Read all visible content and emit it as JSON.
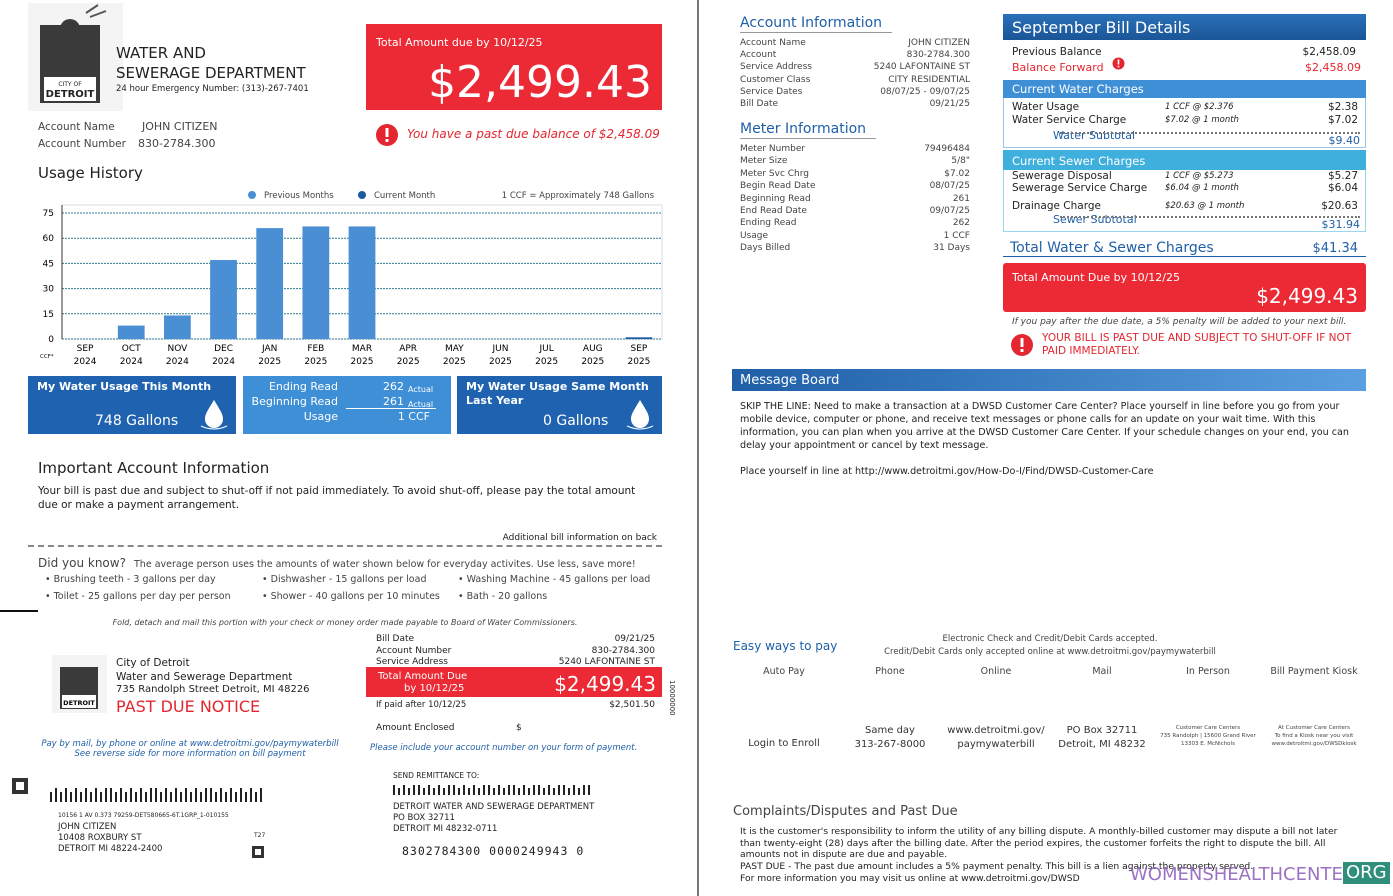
{
  "header": {
    "logo": [
      "CITY OF",
      "DETROIT"
    ],
    "dept_line1": "WATER AND",
    "dept_line2": "SEWERAGE DEPARTMENT",
    "emergency": "24 hour Emergency Number: (313)-267-7401",
    "account_name_label": "Account Name",
    "account_name": "JOHN CITIZEN",
    "account_number_label": "Account Number",
    "account_number": "830-2784.300"
  },
  "total_box": {
    "label": "Total Amount due by 10/12/25",
    "amount": "$2,499.43",
    "past_due": "You have a past due balance of $2,458.09"
  },
  "usage_history": {
    "type": "bar",
    "title": "Usage History",
    "legend": [
      "Previous Months",
      "Current Month"
    ],
    "colors": [
      "#4a8fd4",
      "#1e5aa0"
    ],
    "note": "1 CCF = Approximately 748 Gallons",
    "unit": "CCF*",
    "months": [
      "SEP",
      "OCT",
      "NOV",
      "DEC",
      "JAN",
      "FEB",
      "MAR",
      "APR",
      "MAY",
      "JUN",
      "JUL",
      "AUG",
      "SEP"
    ],
    "years": [
      "2024",
      "2024",
      "2024",
      "2024",
      "2025",
      "2025",
      "2025",
      "2025",
      "2025",
      "2025",
      "2025",
      "2025",
      "2025"
    ],
    "values": [
      0,
      8,
      14,
      47,
      66,
      67,
      67,
      0,
      0,
      0,
      0,
      0,
      1
    ],
    "ylim": [
      0,
      75
    ],
    "yticks": [
      0,
      15,
      30,
      45,
      60,
      75
    ],
    "grid": true
  },
  "usage_tiles": {
    "this_month_title": "My Water Usage This Month",
    "this_month_value": "748 Gallons",
    "reads": [
      [
        "Ending Read",
        "262",
        "Actual"
      ],
      [
        "Beginning Read",
        "261",
        "Actual"
      ],
      [
        "Usage",
        "1 CCF"
      ]
    ],
    "last_year_title": [
      "My Water Usage Same Month",
      "Last Year"
    ],
    "last_year_value": "0 Gallons"
  },
  "important": {
    "title": "Important Account Information",
    "text": "Your bill is past due and subject to shut-off if not paid immediately.  To avoid shut-off, please pay the total amount due or make a payment arrangement.",
    "additional": "Additional bill information on back"
  },
  "did_you_know": {
    "title": "Did you know?",
    "intro": "The average person uses the amounts of water shown below for everyday activites.  Use less, save more!",
    "tips": [
      "Brushing teeth - 3 gallons per day",
      "Dishwasher - 15 gallons per load",
      "Washing Machine - 45 gallons per load",
      "Toilet - 25 gallons per day per person",
      "Shower - 40 gallons per 10 minutes",
      "Bath - 20 gallons"
    ]
  },
  "fold_note": "Fold, detach and mail this portion with your check or money order made payable to Board of Water Commissioners.",
  "stub": {
    "city_lines": [
      "City of Detroit",
      "Water and Sewerage Department",
      "735 Randolph Street Detroit, MI 48226"
    ],
    "notice": "PAST DUE NOTICE",
    "rows": [
      [
        "Bill Date",
        "09/21/25"
      ],
      [
        "Account Number",
        "830-2784.300"
      ],
      [
        "Service Address",
        "5240 LAFONTAINE ST"
      ]
    ],
    "due_label": [
      "Total Amount Due",
      "by 10/12/25"
    ],
    "due_amount": "$2,499.43",
    "after": [
      "If paid after 10/12/25",
      "$2,501.50"
    ],
    "enclosed": [
      "Amount Enclosed",
      "$"
    ],
    "pay_note": [
      "Pay by mail, by phone or online at www.detroitmi.gov/paymywaterbill",
      "See reverse side for more information on bill payment"
    ],
    "include_note": "Please include your account number on your form of payment.",
    "mail_code": "10156 1 AV 0.373   79259-DET580665-6T.1GRP_1-010155",
    "mail_lines": [
      "JOHN CITIZEN",
      "10408 ROXBURY ST",
      "DETROIT  MI  48224-2400"
    ],
    "tray": "T27",
    "remit": [
      "SEND REMITTANCE TO:",
      "DETROIT WATER AND SEWERAGE DEPARTMENT",
      "PO BOX 32711",
      "DETROIT  MI  48232-0711"
    ],
    "scanline": "8302784300 0000249943 0",
    "side_code": "10000000"
  },
  "account_information": {
    "title": "Account Information",
    "rows": [
      [
        "Account Name",
        "JOHN CITIZEN"
      ],
      [
        "Account",
        "830-2784.300"
      ],
      [
        "Service Address",
        "5240 LAFONTAINE ST"
      ],
      [
        "Customer Class",
        "CITY RESIDENTIAL"
      ],
      [
        "Service Dates",
        "08/07/25 - 09/07/25"
      ],
      [
        "Bill Date",
        "09/21/25"
      ]
    ]
  },
  "meter_information": {
    "title": "Meter Information",
    "rows": [
      [
        "Meter Number",
        "79496484"
      ],
      [
        "Meter Size",
        "5/8\""
      ],
      [
        "Meter Svc Chrg",
        "$7.02"
      ],
      [
        "Begin Read Date",
        "08/07/25"
      ],
      [
        "Beginning Read",
        "261"
      ],
      [
        "End Read Date",
        "09/07/25"
      ],
      [
        "Ending Read",
        "262"
      ],
      [
        "Usage",
        "1 CCF"
      ],
      [
        "Days Billed",
        "31 Days"
      ]
    ]
  },
  "bill_details": {
    "title": "September Bill Details",
    "previous": [
      "Previous Balance",
      "$2,458.09"
    ],
    "forward": [
      "Balance Forward",
      "$2,458.09"
    ],
    "water": {
      "title": "Current Water Charges",
      "rows": [
        [
          "Water Usage",
          "1 CCF @ $2.376",
          "$2.38"
        ],
        [
          "Water Service Charge",
          "$7.02 @ 1 month",
          "$7.02"
        ]
      ],
      "subtotal": [
        "Water Subtotal",
        "$9.40"
      ]
    },
    "sewer": {
      "title": "Current Sewer Charges",
      "rows": [
        [
          "Sewerage Disposal",
          "1 CCF @ $5.273",
          "$5.27"
        ],
        [
          "Sewerage Service Charge",
          "$6.04 @ 1 month",
          "$6.04"
        ],
        [
          "Drainage Charge",
          "$20.63 @ 1 month",
          "$20.63"
        ]
      ],
      "subtotal": [
        "Sewer Subtotal",
        "$31.94"
      ]
    },
    "total_ws": [
      "Total Water & Sewer Charges",
      "$41.34"
    ],
    "due_label": "Total Amount Due by 10/12/25",
    "due_amount": "$2,499.43",
    "penalty": "If you pay after the due date, a 5% penalty will be added to your next bill.",
    "warning": "YOUR BILL IS PAST DUE AND SUBJECT TO SHUT-OFF IF NOT PAID IMMEDIATELY."
  },
  "message_board": {
    "title": "Message Board",
    "paragraphs": [
      "SKIP THE LINE: Need to make a transaction at a DWSD Customer Care Center? Place yourself in line before you go from your mobile device, computer or phone, and receive text messages or phone calls for an update on your wait time. With this information, you can plan when you arrive at the DWSD Customer Care Center. If your schedule changes on your end, you can delay your appointment or cancel by text message.",
      "Place yourself in line at http://www.detroitmi.gov/How-Do-I/Find/DWSD-Customer-Care"
    ]
  },
  "easy_ways": {
    "title": "Easy ways to pay",
    "notes": [
      "Electronic Check and Credit/Debit Cards accepted.",
      "Credit/Debit Cards only accepted online at www.detroitmi.gov/paymywaterbill"
    ],
    "methods": [
      {
        "name": "Auto Pay",
        "detail": [
          "Login to Enroll"
        ]
      },
      {
        "name": "Phone",
        "detail": [
          "Same day",
          "313-267-8000"
        ]
      },
      {
        "name": "Online",
        "detail": [
          "www.detroitmi.gov/",
          "paymywaterbill"
        ]
      },
      {
        "name": "Mail",
        "detail": [
          "PO Box 32711",
          "Detroit, MI 48232"
        ]
      },
      {
        "name": "In Person",
        "detail": [
          "Customer Care Centers",
          "735 Randolph | 15600 Grand River",
          "13303 E. McNichols"
        ]
      },
      {
        "name": "Bill Payment Kiosk",
        "detail": [
          "At Customer Care Centers",
          "To find a Kiosk near you visit",
          "www.detroitmi.gov/DWSDkiosk"
        ]
      }
    ]
  },
  "complaints": {
    "title": "Complaints/Disputes and Past Due",
    "paragraphs": [
      "It is the customer's responsibility to inform the utility of any billing dispute.  A monthly-billed customer may dispute a bill not later than twenty-eight (28) days after the billing date.  After the period expires, the customer forfeits the right to dispute the bill.  All amounts not in dispute are due and payable.",
      "PAST DUE - The past due amount includes a 5% payment penalty.  This bill is a lien against the property served.",
      "For more information you may visit us online at www.detroitmi.gov/DWSD"
    ]
  },
  "watermark": [
    "WOMENSHEALTHCENTER.",
    "ORG"
  ]
}
